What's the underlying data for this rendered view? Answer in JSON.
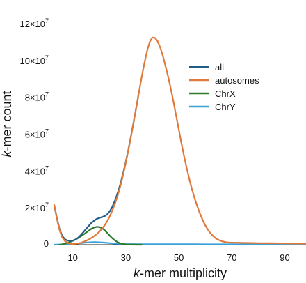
{
  "chart_data": {
    "type": "line",
    "title": "",
    "xlabel_italic": "k",
    "xlabel_rest": "-mer multiplicity",
    "ylabel_italic": "k",
    "ylabel_rest": "-mer count",
    "xlim": [
      3,
      98
    ],
    "ylim": [
      0,
      120000000
    ],
    "x_ticks": [
      {
        "value": 10,
        "label": "10"
      },
      {
        "value": 30,
        "label": "30"
      },
      {
        "value": 50,
        "label": "50"
      },
      {
        "value": 70,
        "label": "70"
      },
      {
        "value": 90,
        "label": "90"
      }
    ],
    "y_ticks": [
      {
        "value": 0,
        "label": "0",
        "mantissa": "",
        "exponent": ""
      },
      {
        "value": 20000000,
        "label": "",
        "mantissa": "2×10",
        "exponent": "7"
      },
      {
        "value": 40000000,
        "label": "",
        "mantissa": "4×10",
        "exponent": "7"
      },
      {
        "value": 60000000,
        "label": "",
        "mantissa": "6×10",
        "exponent": "7"
      },
      {
        "value": 80000000,
        "label": "",
        "mantissa": "8×10",
        "exponent": "7"
      },
      {
        "value": 100000000,
        "label": "",
        "mantissa": "10×10",
        "exponent": "7"
      },
      {
        "value": 120000000,
        "label": "",
        "mantissa": "12×10",
        "exponent": "7"
      }
    ],
    "grid": false,
    "legend_position": "right",
    "series": [
      {
        "name": "autosomes",
        "color": "#e07a3c",
        "x": [
          3,
          4,
          5,
          6,
          7,
          8,
          9,
          10,
          11,
          12,
          13,
          14,
          15,
          16,
          17,
          18,
          19,
          20,
          21,
          22,
          23,
          24,
          25,
          26,
          27,
          28,
          29,
          30,
          31,
          32,
          33,
          34,
          35,
          36,
          37,
          38,
          39,
          40,
          41,
          42,
          43,
          44,
          45,
          46,
          47,
          48,
          49,
          50,
          51,
          52,
          53,
          54,
          55,
          56,
          57,
          58,
          59,
          60,
          61,
          62,
          63,
          64,
          65,
          66,
          67,
          68,
          69,
          70,
          72,
          74,
          76,
          78,
          80,
          85,
          90,
          95,
          98
        ],
        "y": [
          21500000,
          14000000,
          8000000,
          4000000,
          2000000,
          1000000,
          500000,
          400000,
          500000,
          700000,
          1000000,
          1500000,
          2100000,
          2800000,
          3600000,
          4600000,
          5700000,
          7000000,
          8600000,
          10500000,
          12800000,
          15500000,
          18800000,
          22600000,
          27000000,
          32200000,
          38000000,
          44500000,
          51500000,
          59000000,
          66800000,
          74800000,
          83000000,
          91000000,
          98500000,
          105000000,
          110000000,
          112500000,
          112300000,
          110500000,
          107000000,
          102500000,
          97000000,
          91000000,
          84500000,
          77500000,
          70000000,
          62500000,
          55000000,
          48000000,
          41500000,
          35500000,
          30000000,
          25000000,
          20700000,
          16800000,
          13400000,
          10500000,
          8100000,
          6100000,
          4600000,
          3400000,
          2600000,
          2000000,
          1600000,
          1300000,
          1150000,
          1100000,
          1050000,
          1000000,
          950000,
          900000,
          850000,
          800000,
          700000,
          600000,
          550000
        ]
      },
      {
        "name": "all",
        "color": "#1f5c88",
        "x": [
          3,
          4,
          5,
          6,
          7,
          8,
          9,
          10,
          11,
          12,
          13,
          14,
          15,
          16,
          17,
          18,
          19,
          20,
          21,
          22,
          23,
          24,
          25,
          26,
          27,
          28,
          29,
          30,
          31,
          32,
          33,
          34,
          35
        ],
        "y": [
          21500000,
          14500000,
          8500000,
          4800000,
          3000000,
          2200000,
          2000000,
          2200000,
          2800000,
          3800000,
          5200000,
          6800000,
          8500000,
          10200000,
          11800000,
          13000000,
          14000000,
          14500000,
          15000000,
          15500000,
          16500000,
          18200000,
          20800000,
          24200000,
          28400000,
          33200000,
          38800000,
          45000000,
          51800000,
          59200000,
          66900000,
          74900000,
          83000000
        ]
      },
      {
        "name": "ChrX",
        "color": "#2e7a2e",
        "x": [
          5,
          6,
          7,
          8,
          9,
          10,
          11,
          12,
          13,
          14,
          15,
          16,
          17,
          18,
          19,
          20,
          21,
          22,
          23,
          24,
          25,
          26,
          27,
          28,
          29,
          30,
          31,
          32,
          34,
          36
        ],
        "y": [
          0,
          200000,
          500000,
          900000,
          1500000,
          2100000,
          2800000,
          3600000,
          4500000,
          5500000,
          6500000,
          7600000,
          8600000,
          9300000,
          9700000,
          9600000,
          9000000,
          7900000,
          6400000,
          4800000,
          3400000,
          2200000,
          1300000,
          700000,
          300000,
          150000,
          80000,
          40000,
          0,
          0
        ]
      },
      {
        "name": "ChrY",
        "color": "#3aa0d8",
        "x": [
          3,
          6,
          9,
          12,
          14,
          16,
          18,
          20,
          22,
          24,
          26,
          28,
          30,
          32,
          35,
          38,
          42,
          46,
          50,
          55,
          60,
          65,
          70,
          75,
          80,
          85,
          90,
          95,
          98
        ],
        "y": [
          0,
          150000,
          400000,
          700000,
          1000000,
          1250000,
          1350000,
          1300000,
          1100000,
          850000,
          600000,
          450000,
          350000,
          300000,
          280000,
          260000,
          240000,
          230000,
          220000,
          210000,
          200000,
          190000,
          180000,
          170000,
          160000,
          150000,
          140000,
          130000,
          120000
        ]
      }
    ]
  }
}
